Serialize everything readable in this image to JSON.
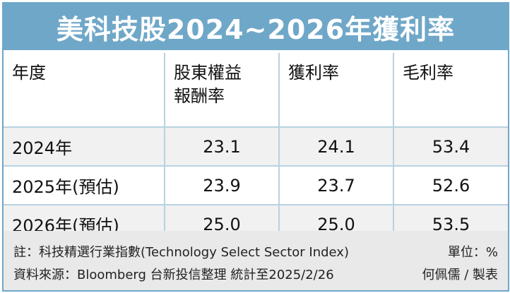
{
  "title": "美科技股2024~2026年獲利率",
  "colors": {
    "accent": "#6fa7c8",
    "row_shade": "#f1f1f1",
    "note_bg": "#e9e9e9"
  },
  "table": {
    "headers": [
      "年度",
      "股東權益\n報酬率",
      "獲利率",
      "毛利率"
    ],
    "header_line1": "股東權益",
    "header_line2": "報酬率",
    "rows": [
      {
        "year": "2024年",
        "roe": "23.1",
        "profit": "24.1",
        "gross": "53.4"
      },
      {
        "year": "2025年(預估)",
        "roe": "23.9",
        "profit": "23.7",
        "gross": "52.6"
      },
      {
        "year": "2026年(預估)",
        "roe": "25.0",
        "profit": "25.0",
        "gross": "53.5"
      }
    ]
  },
  "notes": {
    "note": "註：科技精選行業指數(Technology Select Sector Index)",
    "unit": "單位：%",
    "source": "資料來源：Bloomberg 台新投信整理 統計至2025/2/26",
    "author": "何佩儒 / 製表"
  }
}
